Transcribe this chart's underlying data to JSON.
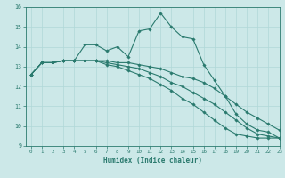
{
  "xlabel": "Humidex (Indice chaleur)",
  "xlim": [
    -0.5,
    23
  ],
  "ylim": [
    9,
    16
  ],
  "yticks": [
    9,
    10,
    11,
    12,
    13,
    14,
    15,
    16
  ],
  "xticks": [
    0,
    1,
    2,
    3,
    4,
    5,
    6,
    7,
    8,
    9,
    10,
    11,
    12,
    13,
    14,
    15,
    16,
    17,
    18,
    19,
    20,
    21,
    22,
    23
  ],
  "bg_color": "#cce8e8",
  "line_color": "#2a7a6e",
  "grid_color": "#b0d8d8",
  "series": [
    [
      12.6,
      13.2,
      13.2,
      13.3,
      13.3,
      14.1,
      14.1,
      13.8,
      14.0,
      13.5,
      14.8,
      14.9,
      15.7,
      15.0,
      14.5,
      14.4,
      13.1,
      12.3,
      11.5,
      10.6,
      10.1,
      9.8,
      9.7,
      9.4
    ],
    [
      12.6,
      13.2,
      13.2,
      13.3,
      13.3,
      13.3,
      13.3,
      13.3,
      13.2,
      13.2,
      13.1,
      13.0,
      12.9,
      12.7,
      12.5,
      12.4,
      12.2,
      11.9,
      11.5,
      11.1,
      10.7,
      10.4,
      10.1,
      9.8
    ],
    [
      12.6,
      13.2,
      13.2,
      13.3,
      13.3,
      13.3,
      13.3,
      13.2,
      13.1,
      13.0,
      12.9,
      12.7,
      12.5,
      12.2,
      12.0,
      11.7,
      11.4,
      11.1,
      10.7,
      10.3,
      9.9,
      9.6,
      9.5,
      9.4
    ],
    [
      12.6,
      13.2,
      13.2,
      13.3,
      13.3,
      13.3,
      13.3,
      13.1,
      13.0,
      12.8,
      12.6,
      12.4,
      12.1,
      11.8,
      11.4,
      11.1,
      10.7,
      10.3,
      9.9,
      9.6,
      9.5,
      9.4,
      9.4,
      9.4
    ]
  ]
}
